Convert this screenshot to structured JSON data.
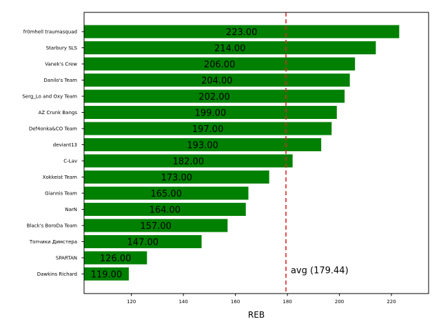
{
  "chart_data": {
    "type": "bar",
    "orientation": "horizontal",
    "categories": [
      "fr0mhell traumasquad",
      "Starbury SLS",
      "Vanek's Crew",
      "Danilo's Team",
      "Serg_Lo and Oxy Team",
      "AZ Crunk Bangs",
      "Def4onka&CO Team",
      "deviant13",
      "C-Lav",
      "Xokkeist Team",
      "Giannis Team",
      "NarN",
      "Black's BoroDa Team",
      "Топчики Димстера",
      "SPARTAN",
      "Dawkins Richard"
    ],
    "values": [
      223,
      214,
      206,
      204,
      202,
      199,
      197,
      193,
      182,
      173,
      165,
      164,
      157,
      147,
      126,
      119
    ],
    "value_labels": [
      "223.00",
      "214.00",
      "206.00",
      "204.00",
      "202.00",
      "199.00",
      "197.00",
      "193.00",
      "182.00",
      "173.00",
      "165.00",
      "164.00",
      "157.00",
      "147.00",
      "126.00",
      "119.00"
    ],
    "xlabel": "REB",
    "ylabel": "",
    "title": "",
    "xlim": [
      101.8,
      234.3
    ],
    "xticks": [
      120,
      140,
      160,
      180,
      200,
      220
    ],
    "bar_color": "#008000",
    "average": {
      "value": 179.44,
      "label": "avg (179.44)",
      "color": "#d62728",
      "style": "dashed"
    },
    "grid": false,
    "legend": "none"
  }
}
